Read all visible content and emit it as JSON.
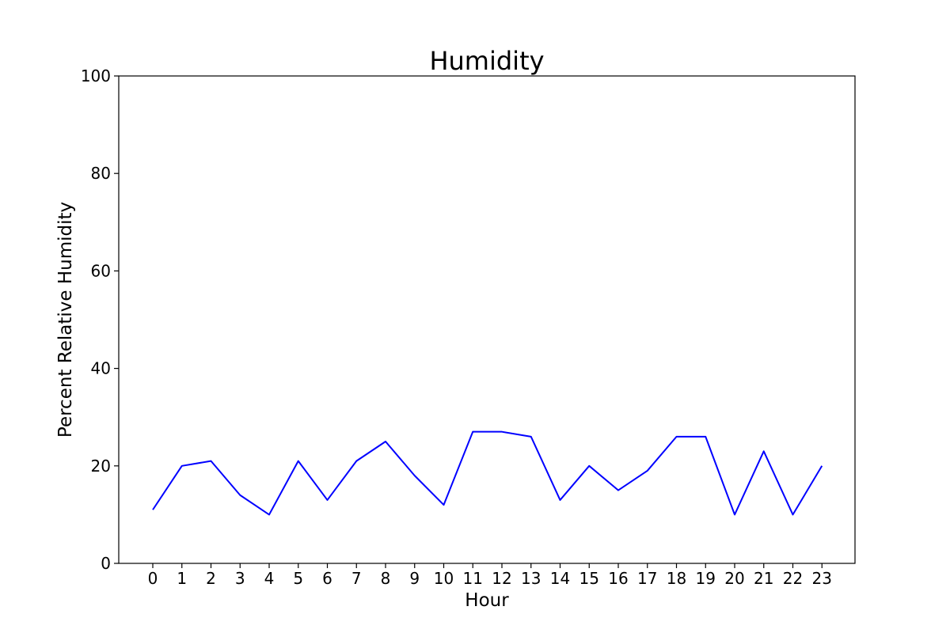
{
  "chart_data": {
    "type": "line",
    "title": "Humidity",
    "xlabel": "Hour",
    "ylabel": "Percent Relative Humidity",
    "ylim": [
      0,
      100
    ],
    "yticks": [
      0,
      20,
      40,
      60,
      80,
      100
    ],
    "categories": [
      "0",
      "1",
      "2",
      "3",
      "4",
      "5",
      "6",
      "7",
      "8",
      "9",
      "10",
      "11",
      "12",
      "13",
      "14",
      "15",
      "16",
      "17",
      "18",
      "19",
      "20",
      "21",
      "22",
      "23"
    ],
    "x": [
      0,
      1,
      2,
      3,
      4,
      5,
      6,
      7,
      8,
      9,
      10,
      11,
      12,
      13,
      14,
      15,
      16,
      17,
      18,
      19,
      20,
      21,
      22,
      23
    ],
    "series": [
      {
        "color": "#0000ff",
        "values": [
          11,
          20,
          21,
          14,
          10,
          21,
          13,
          21,
          25,
          18,
          12,
          27,
          27,
          26,
          13,
          20,
          15,
          19,
          26,
          26,
          10,
          23,
          10,
          20
        ]
      }
    ],
    "grid": false,
    "legend": "none"
  }
}
